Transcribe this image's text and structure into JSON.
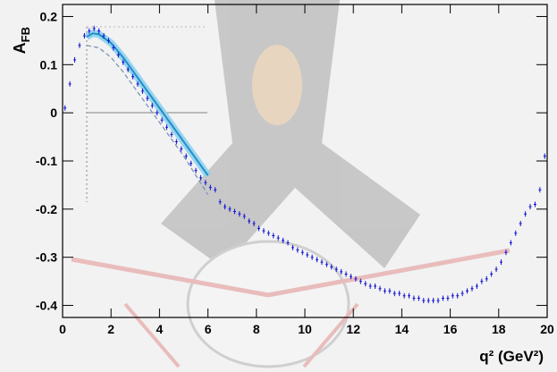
{
  "chart_data": {
    "type": "scatter",
    "ylabel": {
      "main": "A",
      "sub": "FB"
    },
    "xlabel": "q² (GeV²)",
    "xlim": [
      0,
      20
    ],
    "ylim": [
      -0.425,
      0.225
    ],
    "xticks": [
      0,
      2,
      4,
      6,
      8,
      10,
      12,
      14,
      16,
      18,
      20
    ],
    "yticks": [
      -0.4,
      -0.3,
      -0.2,
      -0.1,
      0,
      0.1,
      0.2
    ],
    "series": [
      {
        "style": "points",
        "color": "#1010d0",
        "x": [
          0.1,
          0.3,
          0.5,
          0.7,
          0.9,
          1.1,
          1.3,
          1.5,
          1.7,
          1.9,
          2.1,
          2.3,
          2.5,
          2.7,
          2.9,
          3.1,
          3.3,
          3.5,
          3.7,
          3.9,
          4.1,
          4.3,
          4.5,
          4.7,
          4.9,
          5.1,
          5.3,
          5.5,
          5.7,
          5.9,
          6.1,
          6.3,
          6.5,
          6.7,
          6.9,
          7.1,
          7.3,
          7.5,
          7.7,
          7.9,
          8.1,
          8.3,
          8.5,
          8.7,
          8.9,
          9.1,
          9.3,
          9.5,
          9.7,
          9.9,
          10.1,
          10.3,
          10.5,
          10.7,
          10.9,
          11.1,
          11.3,
          11.5,
          11.7,
          11.9,
          12.1,
          12.3,
          12.5,
          12.7,
          12.9,
          13.1,
          13.3,
          13.5,
          13.7,
          13.9,
          14.1,
          14.3,
          14.5,
          14.7,
          14.9,
          15.1,
          15.3,
          15.5,
          15.7,
          15.9,
          16.1,
          16.3,
          16.5,
          16.7,
          16.9,
          17.1,
          17.3,
          17.5,
          17.7,
          17.9,
          18.1,
          18.3,
          18.5,
          18.7,
          18.9,
          19.1,
          19.3,
          19.5,
          19.7,
          19.9
        ],
        "values": [
          0.01,
          0.06,
          0.11,
          0.14,
          0.16,
          0.17,
          0.175,
          0.17,
          0.16,
          0.15,
          0.135,
          0.12,
          0.105,
          0.09,
          0.075,
          0.06,
          0.045,
          0.03,
          0.015,
          0.0,
          -0.015,
          -0.03,
          -0.045,
          -0.06,
          -0.075,
          -0.09,
          -0.105,
          -0.12,
          -0.135,
          -0.145,
          -0.155,
          -0.16,
          -0.185,
          -0.195,
          -0.2,
          -0.205,
          -0.21,
          -0.215,
          -0.225,
          -0.23,
          -0.24,
          -0.245,
          -0.25,
          -0.255,
          -0.26,
          -0.265,
          -0.27,
          -0.28,
          -0.285,
          -0.29,
          -0.295,
          -0.3,
          -0.305,
          -0.31,
          -0.315,
          -0.32,
          -0.325,
          -0.33,
          -0.335,
          -0.34,
          -0.345,
          -0.35,
          -0.355,
          -0.36,
          -0.36,
          -0.365,
          -0.37,
          -0.37,
          -0.375,
          -0.375,
          -0.38,
          -0.38,
          -0.385,
          -0.385,
          -0.39,
          -0.39,
          -0.39,
          -0.39,
          -0.385,
          -0.385,
          -0.38,
          -0.38,
          -0.375,
          -0.37,
          -0.365,
          -0.36,
          -0.35,
          -0.345,
          -0.335,
          -0.325,
          -0.31,
          -0.29,
          -0.27,
          -0.25,
          -0.23,
          -0.21,
          -0.195,
          -0.19,
          -0.16,
          -0.09
        ]
      },
      {
        "style": "band",
        "color": "#1e90c8",
        "x": [
          1,
          1.25,
          1.5,
          2,
          2.5,
          3,
          3.5,
          4,
          4.5,
          5,
          5.5,
          6
        ],
        "values": [
          0.158,
          0.165,
          0.163,
          0.145,
          0.115,
          0.08,
          0.045,
          0.01,
          -0.025,
          -0.06,
          -0.095,
          -0.13
        ]
      },
      {
        "style": "dashed",
        "color": "#7a96b8",
        "x": [
          1,
          1.5,
          2,
          2.5,
          3,
          3.5,
          4,
          4.5,
          5,
          5.5,
          6
        ],
        "values": [
          0.14,
          0.135,
          0.115,
          0.085,
          0.05,
          0.015,
          -0.02,
          -0.055,
          -0.09,
          -0.13,
          -0.17
        ]
      }
    ]
  }
}
